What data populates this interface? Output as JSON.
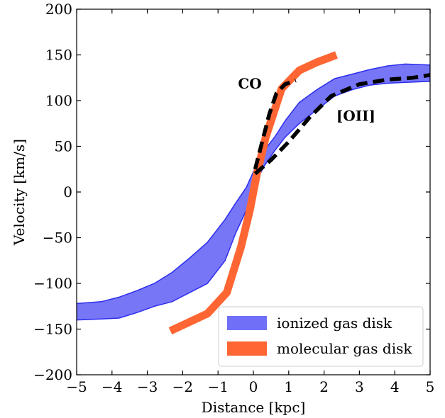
{
  "chart_data": {
    "type": "line",
    "title": "",
    "xlabel": "Distance [kpc]",
    "ylabel": "Velocity [km/s]",
    "xlim": [
      -5,
      5
    ],
    "ylim": [
      -200,
      200
    ],
    "xticks": [
      -5,
      -4,
      -3,
      -2,
      -1,
      0,
      1,
      2,
      3,
      4,
      5
    ],
    "yticks": [
      -200,
      -150,
      -100,
      -50,
      0,
      50,
      100,
      150,
      200
    ],
    "xtick_labels": [
      "−5",
      "−4",
      "−3",
      "−2",
      "−1",
      "0",
      "1",
      "2",
      "3",
      "4",
      "5"
    ],
    "ytick_labels": [
      "−200",
      "−150",
      "−100",
      "−50",
      "0",
      "50",
      "100",
      "150",
      "200"
    ],
    "grid": false,
    "legend_position": "bottom-right",
    "colors": {
      "ionized": "#6f6ff7",
      "ionized_edge": "#2d2ded",
      "molecular": "#ff6633",
      "model": "#000000"
    },
    "series": [
      {
        "name": "ionized gas disk",
        "kind": "band",
        "x": [
          -5,
          -4.3,
          -3.8,
          -3.3,
          -2.8,
          -2.3,
          -1.8,
          -1.3,
          -0.8,
          -0.5,
          -0.2,
          0,
          0.3,
          0.6,
          0.9,
          1.3,
          1.8,
          2.3,
          2.8,
          3.3,
          3.8,
          4.3,
          5
        ],
        "upper": [
          -122,
          -120,
          -115,
          -108,
          -100,
          -88,
          -72,
          -55,
          -30,
          -12,
          5,
          22,
          45,
          60,
          78,
          98,
          112,
          124,
          129,
          134,
          138,
          140,
          139
        ],
        "lower": [
          -140,
          -139,
          -138,
          -132,
          -125,
          -120,
          -110,
          -100,
          -75,
          -45,
          -20,
          5,
          28,
          45,
          60,
          75,
          90,
          105,
          112,
          117,
          119,
          120,
          121
        ]
      },
      {
        "name": "molecular gas disk",
        "kind": "line",
        "x": [
          -2.35,
          -1.3,
          -0.75,
          -0.35,
          -0.1,
          0.1,
          0.35,
          0.8,
          1.3,
          1.8,
          2.35
        ],
        "y": [
          -152,
          -133,
          -110,
          -60,
          -20,
          20,
          60,
          113,
          133,
          142,
          150
        ]
      },
      {
        "name": "CO",
        "kind": "dashed",
        "x": [
          0.05,
          0.25,
          0.45,
          0.65,
          0.9,
          1.2
        ],
        "y": [
          25,
          55,
          85,
          108,
          118,
          122
        ]
      },
      {
        "name": "[OII]",
        "kind": "dashed",
        "x": [
          0.05,
          0.5,
          1.0,
          1.6,
          2.2,
          3.0,
          3.8,
          4.5,
          5.0
        ],
        "y": [
          20,
          35,
          55,
          82,
          105,
          118,
          123,
          125,
          128
        ]
      }
    ],
    "annotations": [
      {
        "text": "CO",
        "x": -0.1,
        "y": 113
      },
      {
        "text": "[OII]",
        "x": 2.9,
        "y": 78
      }
    ]
  }
}
